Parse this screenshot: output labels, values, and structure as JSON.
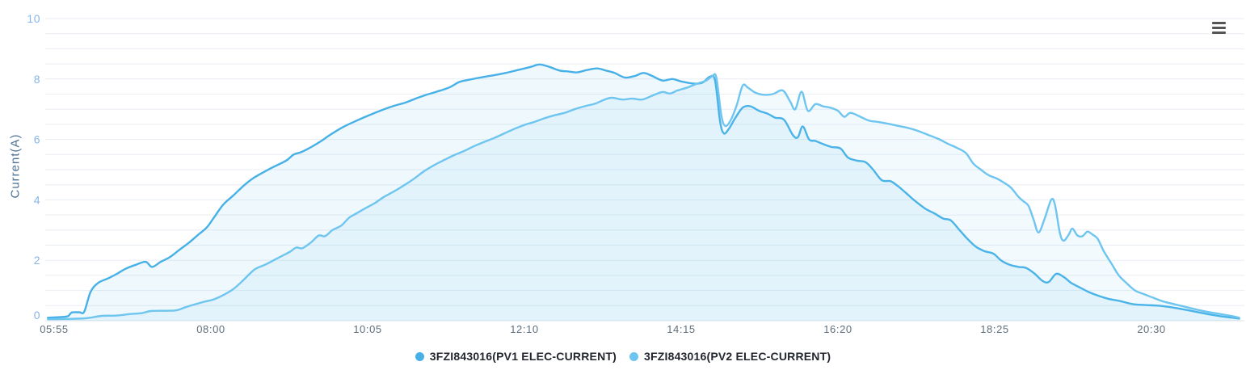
{
  "chart": {
    "background": "#ffffff",
    "menu_icon": "hamburger-icon",
    "colors": {
      "pv1_line": "#47b1e7",
      "pv2_line": "#6ec5ef",
      "gridline": "#e9eef3",
      "axis_line": "#dde3e9",
      "y_tick_label": "#85b5e8",
      "x_tick_label": "#5f6f7d",
      "y_axis_title": "#4a7093",
      "legend_text": "#23262e",
      "menu_icon_color": "#555555",
      "area_fill_opacity": 0.09
    }
  },
  "chart_data": {
    "type": "line",
    "title": "",
    "xlabel": "",
    "ylabel": "Current(A)",
    "ylim": [
      0,
      10
    ],
    "y_major_ticks": [
      0,
      2,
      4,
      6,
      8,
      10
    ],
    "y_minor_step": 0.5,
    "x_ticks": [
      "05:55",
      "08:00",
      "10:05",
      "12:10",
      "14:15",
      "16:20",
      "18:25",
      "20:30"
    ],
    "grid": "horizontal-only",
    "legend_position": "bottom-center",
    "series": [
      {
        "name": "3FZI843016(PV1 ELEC-CURRENT)",
        "color": "#47b1e7",
        "points": [
          [
            "05:50",
            0.1
          ],
          [
            "06:00",
            0.12
          ],
          [
            "06:06",
            0.15
          ],
          [
            "06:09",
            0.27
          ],
          [
            "06:15",
            0.28
          ],
          [
            "06:19",
            0.3
          ],
          [
            "06:24",
            0.95
          ],
          [
            "06:30",
            1.25
          ],
          [
            "06:38",
            1.4
          ],
          [
            "06:45",
            1.55
          ],
          [
            "06:52",
            1.72
          ],
          [
            "07:00",
            1.85
          ],
          [
            "07:08",
            1.95
          ],
          [
            "07:13",
            1.78
          ],
          [
            "07:20",
            1.95
          ],
          [
            "07:27",
            2.1
          ],
          [
            "07:35",
            2.35
          ],
          [
            "07:43",
            2.6
          ],
          [
            "07:50",
            2.85
          ],
          [
            "07:57",
            3.1
          ],
          [
            "08:03",
            3.45
          ],
          [
            "08:10",
            3.85
          ],
          [
            "08:18",
            4.15
          ],
          [
            "08:27",
            4.5
          ],
          [
            "08:35",
            4.75
          ],
          [
            "08:48",
            5.05
          ],
          [
            "09:00",
            5.3
          ],
          [
            "09:06",
            5.5
          ],
          [
            "09:12",
            5.58
          ],
          [
            "09:20",
            5.75
          ],
          [
            "09:28",
            5.95
          ],
          [
            "09:35",
            6.15
          ],
          [
            "09:45",
            6.4
          ],
          [
            "09:55",
            6.6
          ],
          [
            "10:05",
            6.78
          ],
          [
            "10:15",
            6.95
          ],
          [
            "10:25",
            7.1
          ],
          [
            "10:35",
            7.22
          ],
          [
            "10:45",
            7.38
          ],
          [
            "10:52",
            7.48
          ],
          [
            "11:00",
            7.58
          ],
          [
            "11:10",
            7.72
          ],
          [
            "11:18",
            7.9
          ],
          [
            "11:25",
            7.97
          ],
          [
            "11:35",
            8.05
          ],
          [
            "11:45",
            8.12
          ],
          [
            "11:55",
            8.2
          ],
          [
            "12:05",
            8.3
          ],
          [
            "12:15",
            8.4
          ],
          [
            "12:22",
            8.48
          ],
          [
            "12:30",
            8.4
          ],
          [
            "12:38",
            8.28
          ],
          [
            "12:45",
            8.25
          ],
          [
            "12:52",
            8.22
          ],
          [
            "13:00",
            8.3
          ],
          [
            "13:08",
            8.35
          ],
          [
            "13:15",
            8.28
          ],
          [
            "13:22",
            8.2
          ],
          [
            "13:30",
            8.05
          ],
          [
            "13:38",
            8.1
          ],
          [
            "13:45",
            8.2
          ],
          [
            "13:52",
            8.1
          ],
          [
            "14:00",
            7.95
          ],
          [
            "14:08",
            8.0
          ],
          [
            "14:15",
            7.92
          ],
          [
            "14:25",
            7.85
          ],
          [
            "14:32",
            7.88
          ],
          [
            "14:38",
            8.08
          ],
          [
            "14:42",
            7.95
          ],
          [
            "14:46",
            6.6
          ],
          [
            "14:49",
            6.2
          ],
          [
            "14:53",
            6.35
          ],
          [
            "14:58",
            6.7
          ],
          [
            "15:04",
            7.05
          ],
          [
            "15:10",
            7.1
          ],
          [
            "15:17",
            6.95
          ],
          [
            "15:24",
            6.85
          ],
          [
            "15:30",
            6.72
          ],
          [
            "15:37",
            6.65
          ],
          [
            "15:44",
            6.15
          ],
          [
            "15:48",
            6.07
          ],
          [
            "15:52",
            6.43
          ],
          [
            "15:57",
            6.0
          ],
          [
            "16:02",
            5.95
          ],
          [
            "16:08",
            5.85
          ],
          [
            "16:15",
            5.75
          ],
          [
            "16:22",
            5.7
          ],
          [
            "16:28",
            5.4
          ],
          [
            "16:35",
            5.3
          ],
          [
            "16:42",
            5.25
          ],
          [
            "16:48",
            5.0
          ],
          [
            "16:55",
            4.65
          ],
          [
            "17:02",
            4.62
          ],
          [
            "17:08",
            4.45
          ],
          [
            "17:15",
            4.2
          ],
          [
            "17:22",
            3.95
          ],
          [
            "17:30",
            3.7
          ],
          [
            "17:37",
            3.55
          ],
          [
            "17:44",
            3.38
          ],
          [
            "17:50",
            3.32
          ],
          [
            "17:57",
            3.0
          ],
          [
            "18:03",
            2.72
          ],
          [
            "18:10",
            2.45
          ],
          [
            "18:17",
            2.3
          ],
          [
            "18:24",
            2.22
          ],
          [
            "18:30",
            2.0
          ],
          [
            "18:37",
            1.85
          ],
          [
            "18:44",
            1.78
          ],
          [
            "18:50",
            1.75
          ],
          [
            "18:57",
            1.55
          ],
          [
            "19:03",
            1.32
          ],
          [
            "19:08",
            1.28
          ],
          [
            "19:14",
            1.55
          ],
          [
            "19:20",
            1.45
          ],
          [
            "19:26",
            1.25
          ],
          [
            "19:33",
            1.1
          ],
          [
            "19:40",
            0.95
          ],
          [
            "19:48",
            0.82
          ],
          [
            "19:56",
            0.72
          ],
          [
            "20:05",
            0.65
          ],
          [
            "20:15",
            0.55
          ],
          [
            "20:25",
            0.52
          ],
          [
            "20:35",
            0.5
          ],
          [
            "20:45",
            0.45
          ],
          [
            "20:55",
            0.38
          ],
          [
            "21:05",
            0.3
          ],
          [
            "21:15",
            0.22
          ],
          [
            "21:25",
            0.15
          ],
          [
            "21:35",
            0.1
          ],
          [
            "21:40",
            0.07
          ]
        ]
      },
      {
        "name": "3FZI843016(PV2 ELEC-CURRENT)",
        "color": "#6ec5ef",
        "points": [
          [
            "05:50",
            0.05
          ],
          [
            "06:05",
            0.06
          ],
          [
            "06:20",
            0.08
          ],
          [
            "06:33",
            0.16
          ],
          [
            "06:45",
            0.17
          ],
          [
            "06:55",
            0.22
          ],
          [
            "07:05",
            0.25
          ],
          [
            "07:12",
            0.32
          ],
          [
            "07:25",
            0.33
          ],
          [
            "07:33",
            0.35
          ],
          [
            "07:40",
            0.45
          ],
          [
            "07:48",
            0.55
          ],
          [
            "07:55",
            0.63
          ],
          [
            "08:02",
            0.7
          ],
          [
            "08:10",
            0.85
          ],
          [
            "08:18",
            1.05
          ],
          [
            "08:26",
            1.35
          ],
          [
            "08:35",
            1.7
          ],
          [
            "08:43",
            1.85
          ],
          [
            "08:50",
            2.0
          ],
          [
            "08:57",
            2.15
          ],
          [
            "09:03",
            2.28
          ],
          [
            "09:08",
            2.42
          ],
          [
            "09:13",
            2.4
          ],
          [
            "09:20",
            2.6
          ],
          [
            "09:26",
            2.82
          ],
          [
            "09:31",
            2.8
          ],
          [
            "09:37",
            3.0
          ],
          [
            "09:44",
            3.15
          ],
          [
            "09:50",
            3.4
          ],
          [
            "09:56",
            3.55
          ],
          [
            "10:03",
            3.72
          ],
          [
            "10:11",
            3.9
          ],
          [
            "10:18",
            4.1
          ],
          [
            "10:26",
            4.28
          ],
          [
            "10:34",
            4.48
          ],
          [
            "10:42",
            4.7
          ],
          [
            "10:50",
            4.95
          ],
          [
            "10:58",
            5.15
          ],
          [
            "11:06",
            5.32
          ],
          [
            "11:14",
            5.48
          ],
          [
            "11:22",
            5.62
          ],
          [
            "11:30",
            5.78
          ],
          [
            "11:38",
            5.92
          ],
          [
            "11:46",
            6.05
          ],
          [
            "11:54",
            6.2
          ],
          [
            "12:02",
            6.35
          ],
          [
            "12:10",
            6.48
          ],
          [
            "12:18",
            6.58
          ],
          [
            "12:26",
            6.7
          ],
          [
            "12:34",
            6.8
          ],
          [
            "12:42",
            6.88
          ],
          [
            "12:50",
            7.0
          ],
          [
            "12:58",
            7.1
          ],
          [
            "13:06",
            7.18
          ],
          [
            "13:14",
            7.32
          ],
          [
            "13:20",
            7.38
          ],
          [
            "13:28",
            7.32
          ],
          [
            "13:36",
            7.35
          ],
          [
            "13:44",
            7.32
          ],
          [
            "13:52",
            7.45
          ],
          [
            "14:00",
            7.57
          ],
          [
            "14:06",
            7.52
          ],
          [
            "14:12",
            7.62
          ],
          [
            "14:20",
            7.72
          ],
          [
            "14:28",
            7.85
          ],
          [
            "14:35",
            7.95
          ],
          [
            "14:40",
            8.1
          ],
          [
            "14:43",
            8.05
          ],
          [
            "14:47",
            6.8
          ],
          [
            "14:50",
            6.45
          ],
          [
            "14:54",
            6.6
          ],
          [
            "14:59",
            7.1
          ],
          [
            "15:04",
            7.78
          ],
          [
            "15:08",
            7.72
          ],
          [
            "15:14",
            7.55
          ],
          [
            "15:20",
            7.48
          ],
          [
            "15:28",
            7.5
          ],
          [
            "15:36",
            7.62
          ],
          [
            "15:42",
            7.25
          ],
          [
            "15:46",
            7.0
          ],
          [
            "15:51",
            7.58
          ],
          [
            "15:56",
            6.95
          ],
          [
            "16:02",
            7.17
          ],
          [
            "16:08",
            7.1
          ],
          [
            "16:14",
            7.05
          ],
          [
            "16:20",
            6.95
          ],
          [
            "16:25",
            6.75
          ],
          [
            "16:30",
            6.88
          ],
          [
            "16:38",
            6.75
          ],
          [
            "16:45",
            6.62
          ],
          [
            "16:52",
            6.58
          ],
          [
            "17:00",
            6.52
          ],
          [
            "17:08",
            6.45
          ],
          [
            "17:16",
            6.38
          ],
          [
            "17:24",
            6.28
          ],
          [
            "17:32",
            6.15
          ],
          [
            "17:40",
            6.02
          ],
          [
            "17:48",
            5.85
          ],
          [
            "17:55",
            5.72
          ],
          [
            "18:02",
            5.55
          ],
          [
            "18:08",
            5.2
          ],
          [
            "18:14",
            5.0
          ],
          [
            "18:20",
            4.82
          ],
          [
            "18:26",
            4.72
          ],
          [
            "18:32",
            4.58
          ],
          [
            "18:38",
            4.4
          ],
          [
            "18:44",
            4.1
          ],
          [
            "18:48",
            3.95
          ],
          [
            "18:52",
            3.8
          ],
          [
            "18:56",
            3.35
          ],
          [
            "19:00",
            2.92
          ],
          [
            "19:05",
            3.4
          ],
          [
            "19:10",
            4.0
          ],
          [
            "19:13",
            3.85
          ],
          [
            "19:17",
            2.9
          ],
          [
            "19:20",
            2.65
          ],
          [
            "19:24",
            2.85
          ],
          [
            "19:27",
            3.05
          ],
          [
            "19:31",
            2.82
          ],
          [
            "19:35",
            2.8
          ],
          [
            "19:39",
            2.95
          ],
          [
            "19:43",
            2.85
          ],
          [
            "19:47",
            2.72
          ],
          [
            "19:52",
            2.3
          ],
          [
            "19:58",
            1.9
          ],
          [
            "20:04",
            1.5
          ],
          [
            "20:10",
            1.25
          ],
          [
            "20:17",
            1.0
          ],
          [
            "20:24",
            0.88
          ],
          [
            "20:32",
            0.75
          ],
          [
            "20:40",
            0.63
          ],
          [
            "20:48",
            0.55
          ],
          [
            "20:58",
            0.45
          ],
          [
            "21:08",
            0.35
          ],
          [
            "21:18",
            0.27
          ],
          [
            "21:28",
            0.2
          ],
          [
            "21:36",
            0.14
          ],
          [
            "21:40",
            0.1
          ]
        ]
      }
    ]
  }
}
